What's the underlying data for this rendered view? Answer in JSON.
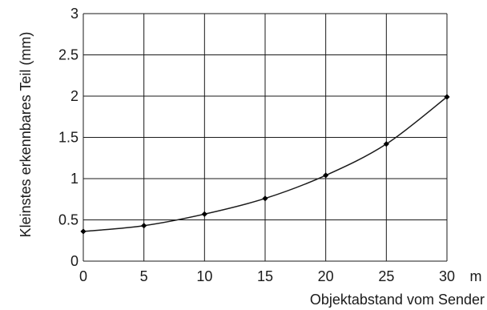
{
  "chart_data": {
    "type": "line",
    "title": "",
    "xlabel": "Objektabstand vom Sender",
    "ylabel": "Kleinstes erkennbares Teil (mm)",
    "x_unit": "m",
    "x_ticks": [
      "0",
      "5",
      "10",
      "15",
      "20",
      "25",
      "30"
    ],
    "y_ticks": [
      "0",
      "0.5",
      "1",
      "1.5",
      "2",
      "2.5",
      "3"
    ],
    "xlim": [
      0,
      30
    ],
    "ylim": [
      0,
      3
    ],
    "grid": true,
    "series": [
      {
        "x": [
          0,
          5,
          10,
          15,
          20,
          25,
          30
        ],
        "y": [
          0.36,
          0.43,
          0.57,
          0.76,
          1.04,
          1.42,
          1.99
        ]
      }
    ],
    "colors": {
      "line": "#1a1a1a",
      "marker": "#000000"
    }
  }
}
